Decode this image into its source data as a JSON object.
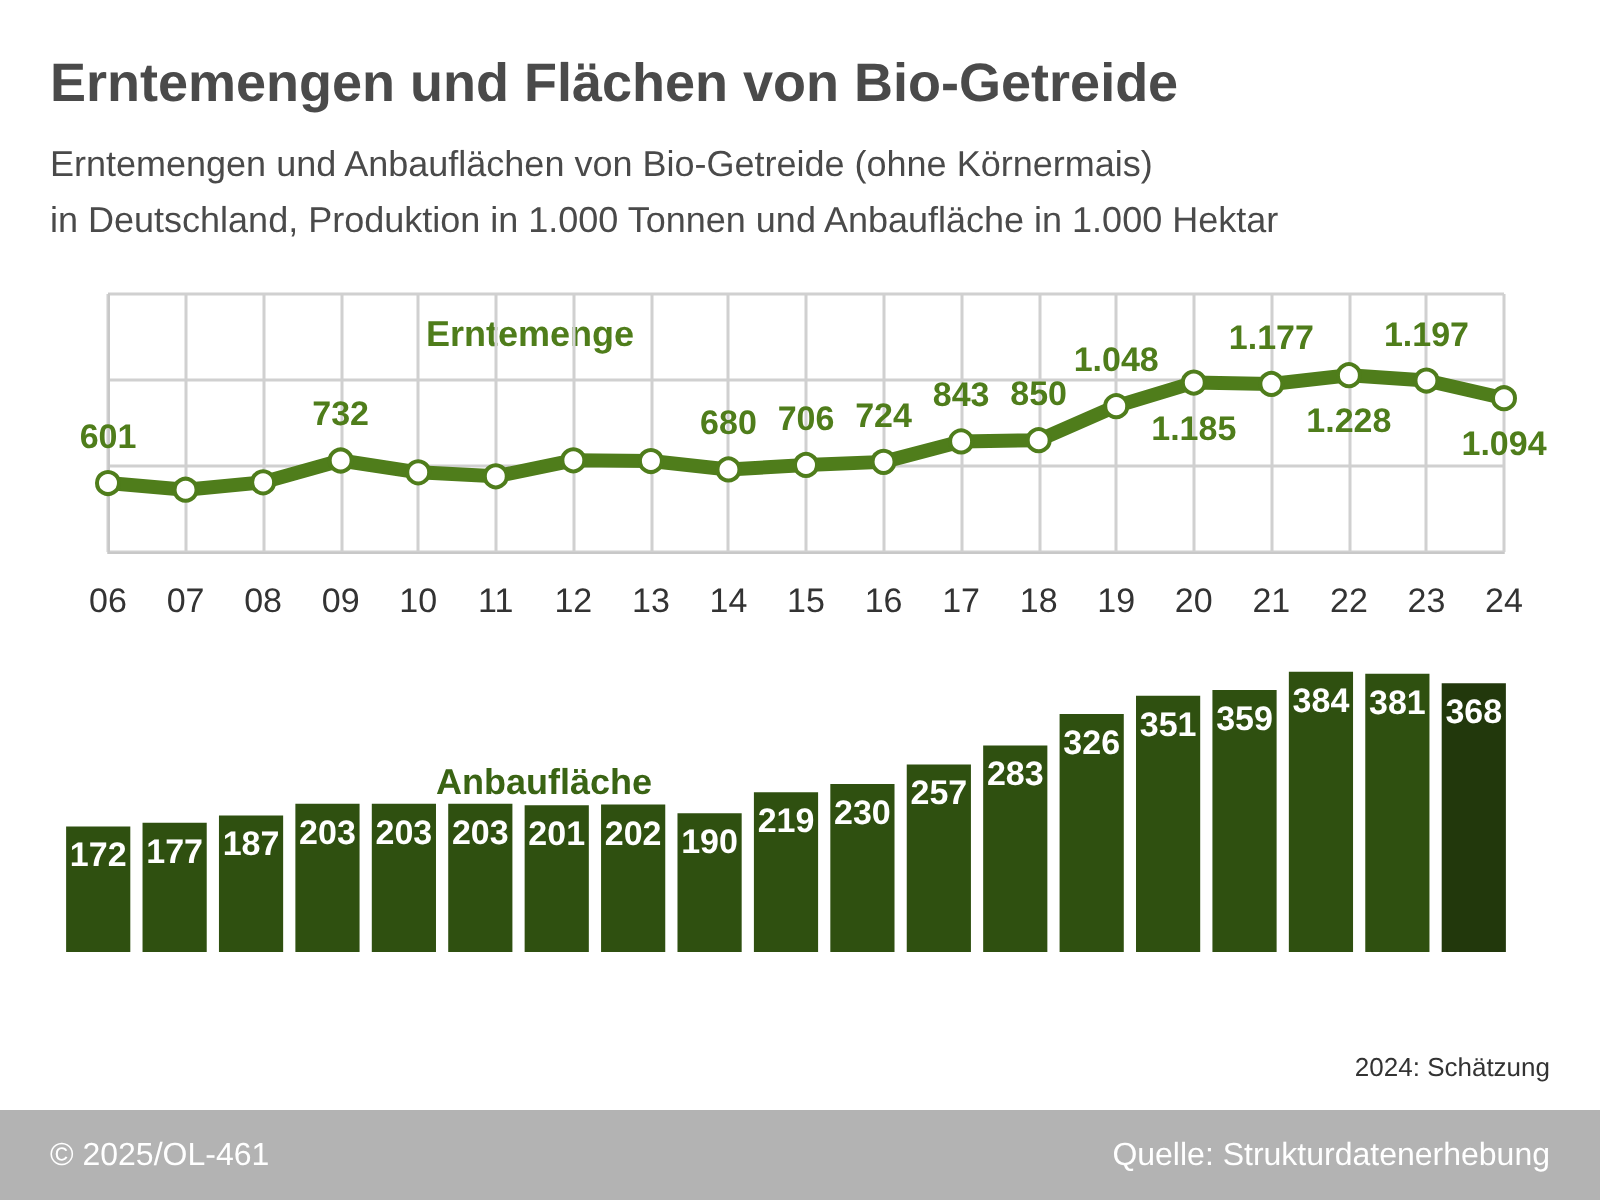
{
  "chart_data": [
    {
      "type": "line",
      "title": "Erntemengen und Flächen von Bio-Getreide",
      "subtitle": "Erntemengen und Anbauflächen von Bio-Getreide (ohne Körnermais)\nin Deutschland, Produktion in 1.000 Tonnen und Anbaufläche in 1.000 Hektar",
      "annotations": [
        "Erntemenge"
      ],
      "categories": [
        "06",
        "07",
        "08",
        "09",
        "10",
        "11",
        "12",
        "13",
        "14",
        "15",
        "16",
        "17",
        "18",
        "19",
        "20",
        "21",
        "22",
        "23",
        "24"
      ],
      "series": [
        {
          "color": "#4f7d1b",
          "values": [
            601,
            562,
            605,
            732,
            663,
            640,
            733,
            729,
            680,
            706,
            724,
            843,
            850,
            1048,
            1185,
            1177,
            1228,
            1197,
            1094
          ],
          "value_labels": [
            "601",
            null,
            null,
            "732",
            null,
            null,
            null,
            null,
            "680",
            "706",
            "724",
            "843",
            "850",
            "1.048",
            "1.185",
            "1.177",
            "1.228",
            "1.197",
            "1.094"
          ]
        }
      ],
      "ylim": [
        200,
        1700
      ],
      "yticks": [
        {
          "value": 200,
          "label": null
        },
        {
          "value": 700,
          "label": null
        },
        {
          "value": 1200,
          "label": null
        },
        {
          "value": 1700,
          "label": null
        }
      ],
      "tick_labels": "x",
      "grid": true,
      "marker": "circle",
      "line_style": "solid"
    },
    {
      "type": "bar",
      "annotations": [
        "Anbaufläche",
        "2024: Schätzung",
        "© 2025/OL-461",
        "Quelle: Strukturdatenerhebung"
      ],
      "categories": [
        "06",
        "07",
        "08",
        "09",
        "10",
        "11",
        "12",
        "13",
        "14",
        "15",
        "16",
        "17",
        "18",
        "19",
        "20",
        "21",
        "22",
        "23",
        "24"
      ],
      "values": [
        172,
        177,
        187,
        203,
        203,
        203,
        201,
        202,
        190,
        219,
        230,
        257,
        283,
        326,
        351,
        359,
        384,
        381,
        368
      ],
      "colors": [
        "#2f5010",
        "#2f5010",
        "#2f5010",
        "#2f5010",
        "#2f5010",
        "#2f5010",
        "#2f5010",
        "#2f5010",
        "#2f5010",
        "#2f5010",
        "#2f5010",
        "#2f5010",
        "#2f5010",
        "#2f5010",
        "#2f5010",
        "#2f5010",
        "#2f5010",
        "#2f5010",
        "#22380c"
      ],
      "data_labels": true,
      "tick_labels": false,
      "grid": false
    }
  ]
}
